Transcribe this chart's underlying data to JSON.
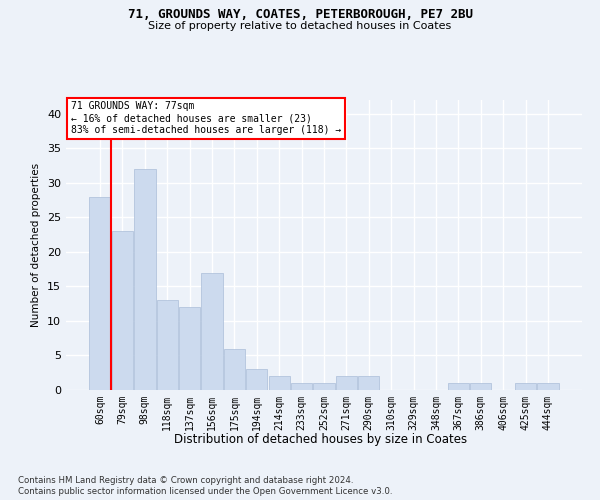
{
  "title1": "71, GROUNDS WAY, COATES, PETERBOROUGH, PE7 2BU",
  "title2": "Size of property relative to detached houses in Coates",
  "xlabel": "Distribution of detached houses by size in Coates",
  "ylabel": "Number of detached properties",
  "categories": [
    "60sqm",
    "79sqm",
    "98sqm",
    "118sqm",
    "137sqm",
    "156sqm",
    "175sqm",
    "194sqm",
    "214sqm",
    "233sqm",
    "252sqm",
    "271sqm",
    "290sqm",
    "310sqm",
    "329sqm",
    "348sqm",
    "367sqm",
    "386sqm",
    "406sqm",
    "425sqm",
    "444sqm"
  ],
  "values": [
    28,
    23,
    32,
    13,
    12,
    17,
    6,
    3,
    2,
    1,
    1,
    2,
    2,
    0,
    0,
    0,
    1,
    1,
    0,
    1,
    1
  ],
  "bar_color": "#ccdaee",
  "bar_edge_color": "#aabdd8",
  "ylim": [
    0,
    42
  ],
  "yticks": [
    0,
    5,
    10,
    15,
    20,
    25,
    30,
    35,
    40
  ],
  "red_line_xdata": 0.475,
  "annotation_text": "71 GROUNDS WAY: 77sqm\n← 16% of detached houses are smaller (23)\n83% of semi-detached houses are larger (118) →",
  "footer1": "Contains HM Land Registry data © Crown copyright and database right 2024.",
  "footer2": "Contains public sector information licensed under the Open Government Licence v3.0.",
  "background_color": "#edf2f9",
  "plot_background": "#edf2f9",
  "grid_color": "#ffffff"
}
